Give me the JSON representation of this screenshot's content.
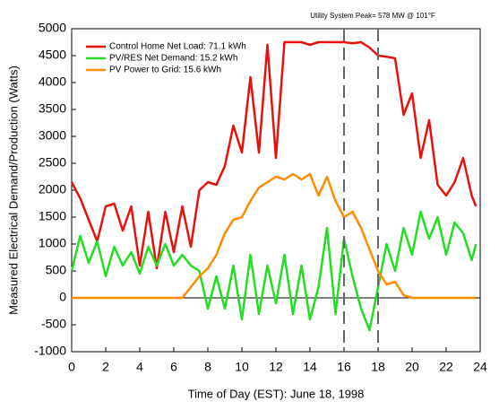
{
  "chart_data": {
    "type": "line",
    "annotation": "Utility System Peak= 578 MW @ 101°F",
    "reference_lines": [
      16,
      18
    ],
    "xlabel": "Time of Day (EST): June 18, 1998",
    "ylabel": "Measured Electrical Demand/Production (Watts)",
    "xlim": [
      0,
      24
    ],
    "xticks": [
      0,
      2,
      4,
      6,
      8,
      10,
      12,
      14,
      16,
      18,
      20,
      22,
      24
    ],
    "ylim": [
      -1000,
      5000
    ],
    "yticks": [
      -1000,
      -500,
      0,
      500,
      1000,
      1500,
      2000,
      2500,
      3000,
      3500,
      4000,
      4500,
      5000
    ],
    "grid": false,
    "legend": "upper left",
    "x": [
      0,
      0.5,
      1,
      1.5,
      2,
      2.5,
      3,
      3.5,
      4,
      4.5,
      5,
      5.5,
      6,
      6.5,
      7,
      7.5,
      8,
      8.5,
      9,
      9.5,
      10,
      10.5,
      11,
      11.5,
      12,
      12.5,
      13,
      13.5,
      14,
      14.5,
      15,
      15.5,
      16,
      16.5,
      17,
      17.5,
      18,
      18.5,
      19,
      19.5,
      20,
      20.5,
      21,
      21.5,
      22,
      22.5,
      23,
      23.5,
      23.75
    ],
    "series": [
      {
        "name": "Control Home Net Load: 71.1 kWh",
        "color": "#e8100a",
        "values": [
          2150,
          1850,
          1450,
          1050,
          1700,
          1750,
          1250,
          1700,
          600,
          1600,
          550,
          1600,
          850,
          1700,
          950,
          2000,
          2150,
          2100,
          2450,
          3200,
          2700,
          4100,
          2700,
          4700,
          2600,
          4750,
          4750,
          4750,
          4700,
          4750,
          4750,
          4750,
          4750,
          4730,
          4750,
          4650,
          4500,
          4480,
          4450,
          3400,
          3800,
          2600,
          3300,
          2100,
          1900,
          2150,
          2600,
          1900,
          1700
        ]
      },
      {
        "name": "PV/RES Net Demand: 15.2 kWh",
        "color": "#22dd22",
        "values": [
          500,
          1150,
          650,
          1050,
          400,
          950,
          600,
          850,
          450,
          950,
          600,
          1000,
          600,
          800,
          600,
          500,
          -200,
          400,
          -200,
          600,
          -400,
          800,
          -300,
          600,
          -100,
          800,
          -300,
          600,
          -400,
          200,
          1300,
          -300,
          1100,
          400,
          -200,
          -600,
          200,
          1000,
          500,
          1300,
          800,
          1600,
          1100,
          1500,
          800,
          1400,
          1200,
          700,
          1000
        ]
      },
      {
        "name": "PV Power to Grid: 15.6 kWh",
        "color": "#ff8c00",
        "values": [
          0,
          0,
          0,
          0,
          0,
          0,
          0,
          0,
          0,
          0,
          0,
          0,
          0,
          0,
          200,
          400,
          550,
          800,
          1200,
          1450,
          1500,
          1800,
          2050,
          2150,
          2250,
          2200,
          2300,
          2200,
          2300,
          1900,
          2250,
          1800,
          1500,
          1600,
          1300,
          900,
          500,
          250,
          300,
          50,
          0,
          0,
          0,
          0,
          0,
          0,
          0,
          0,
          0
        ]
      }
    ]
  }
}
